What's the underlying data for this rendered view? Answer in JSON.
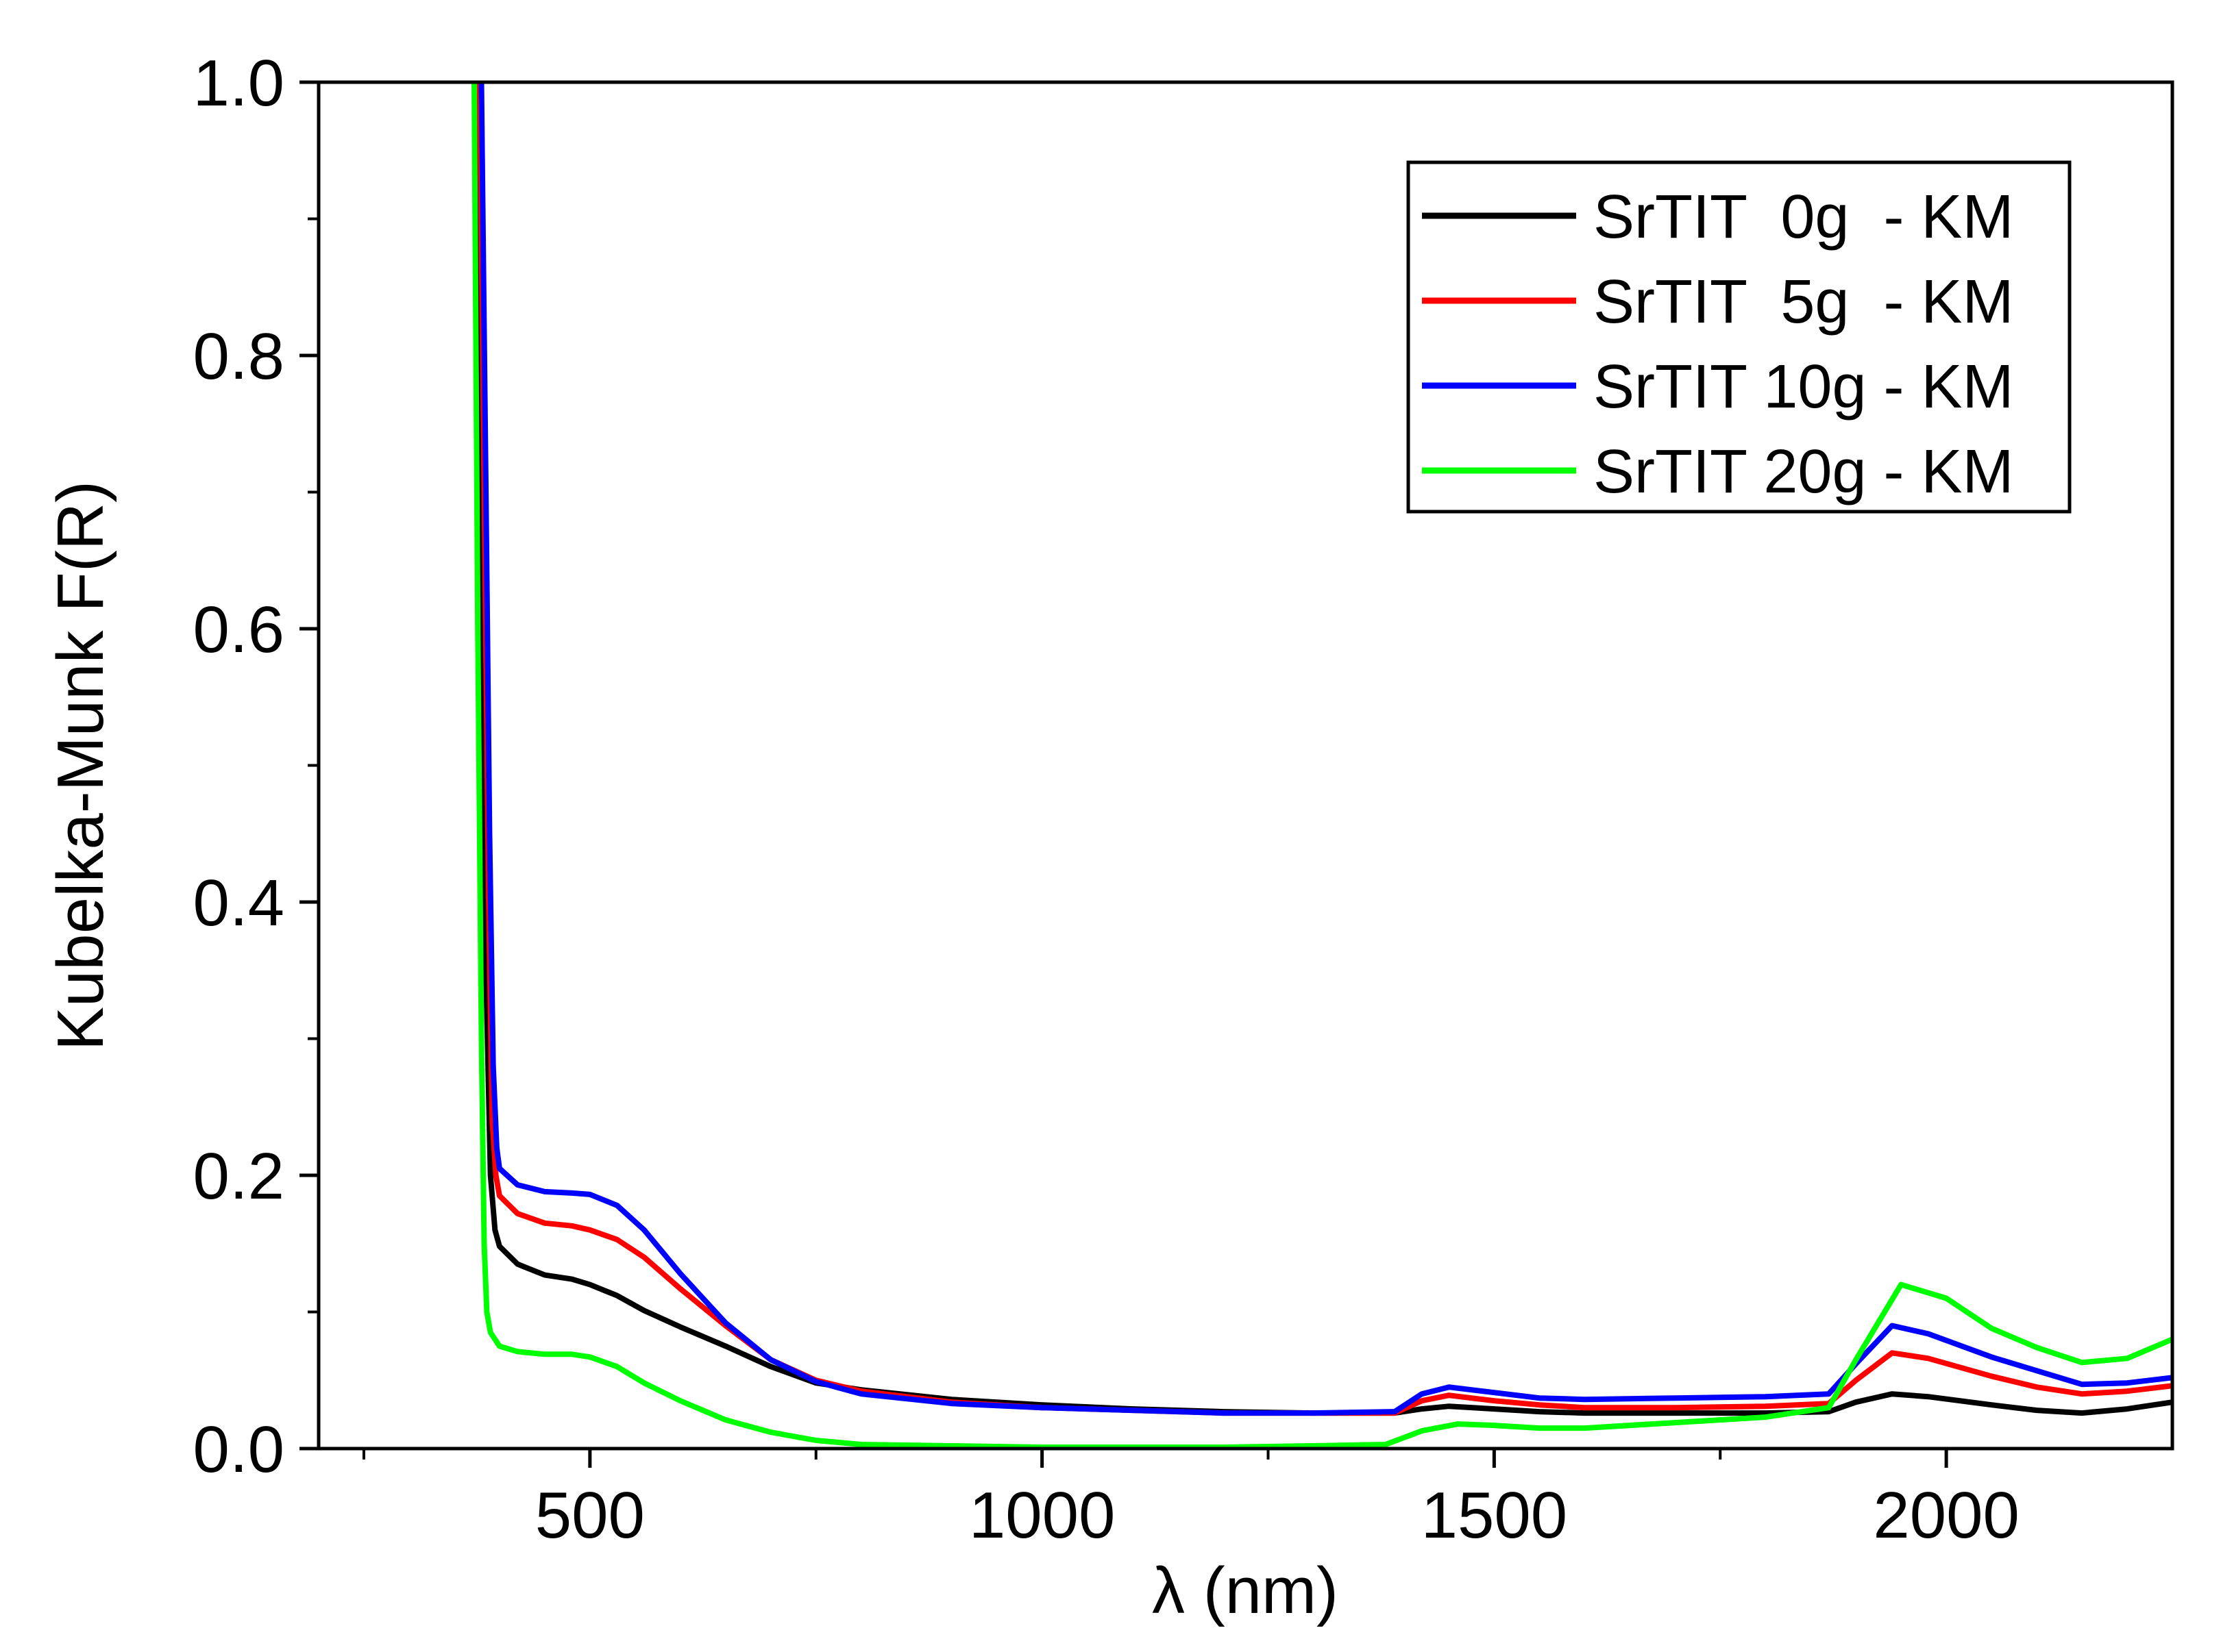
{
  "chart_data": {
    "type": "line",
    "title": "",
    "xlabel": "λ (nm)",
    "ylabel": "Kubelka-Munk F(R)",
    "xlim": [
      200,
      2250
    ],
    "ylim": [
      0.0,
      1.0
    ],
    "x_ticks": [
      500,
      1000,
      1500,
      2000
    ],
    "x_tick_labels": [
      "500",
      "1000",
      "1500",
      "2000"
    ],
    "x_minor_ticks": [
      250,
      750,
      1250,
      1750
    ],
    "y_ticks": [
      0.0,
      0.2,
      0.4,
      0.6,
      0.8,
      1.0
    ],
    "y_tick_labels": [
      "0.0",
      "0.2",
      "0.4",
      "0.6",
      "0.8",
      "1.0"
    ],
    "y_minor_ticks": [
      0.1,
      0.3,
      0.5,
      0.7,
      0.9
    ],
    "grid": false,
    "legend_position": "top-right",
    "series": [
      {
        "name": "SrTIT  0g  - KM",
        "color": "#000000",
        "points": [
          [
            375,
            1.0
          ],
          [
            380,
            0.7
          ],
          [
            385,
            0.35
          ],
          [
            390,
            0.2
          ],
          [
            395,
            0.16
          ],
          [
            400,
            0.148
          ],
          [
            420,
            0.135
          ],
          [
            450,
            0.127
          ],
          [
            480,
            0.124
          ],
          [
            500,
            0.12
          ],
          [
            530,
            0.112
          ],
          [
            560,
            0.101
          ],
          [
            600,
            0.089
          ],
          [
            650,
            0.075
          ],
          [
            700,
            0.06
          ],
          [
            750,
            0.048
          ],
          [
            800,
            0.043
          ],
          [
            900,
            0.036
          ],
          [
            1000,
            0.032
          ],
          [
            1100,
            0.029
          ],
          [
            1200,
            0.027
          ],
          [
            1300,
            0.026
          ],
          [
            1390,
            0.026
          ],
          [
            1420,
            0.029
          ],
          [
            1450,
            0.031
          ],
          [
            1500,
            0.029
          ],
          [
            1550,
            0.027
          ],
          [
            1600,
            0.026
          ],
          [
            1700,
            0.026
          ],
          [
            1800,
            0.026
          ],
          [
            1870,
            0.027
          ],
          [
            1900,
            0.034
          ],
          [
            1940,
            0.04
          ],
          [
            1980,
            0.038
          ],
          [
            2050,
            0.032
          ],
          [
            2100,
            0.028
          ],
          [
            2150,
            0.026
          ],
          [
            2200,
            0.029
          ],
          [
            2250,
            0.034
          ]
        ]
      },
      {
        "name": "SrTIT  5g  - KM",
        "color": "#ff0000",
        "points": [
          [
            378,
            1.0
          ],
          [
            383,
            0.7
          ],
          [
            388,
            0.4
          ],
          [
            392,
            0.24
          ],
          [
            396,
            0.2
          ],
          [
            400,
            0.185
          ],
          [
            420,
            0.172
          ],
          [
            450,
            0.165
          ],
          [
            480,
            0.163
          ],
          [
            500,
            0.16
          ],
          [
            530,
            0.153
          ],
          [
            560,
            0.14
          ],
          [
            600,
            0.117
          ],
          [
            650,
            0.09
          ],
          [
            700,
            0.065
          ],
          [
            750,
            0.05
          ],
          [
            800,
            0.042
          ],
          [
            900,
            0.034
          ],
          [
            1000,
            0.03
          ],
          [
            1100,
            0.028
          ],
          [
            1200,
            0.026
          ],
          [
            1300,
            0.026
          ],
          [
            1390,
            0.026
          ],
          [
            1420,
            0.035
          ],
          [
            1450,
            0.039
          ],
          [
            1500,
            0.035
          ],
          [
            1550,
            0.032
          ],
          [
            1600,
            0.03
          ],
          [
            1700,
            0.03
          ],
          [
            1800,
            0.031
          ],
          [
            1870,
            0.033
          ],
          [
            1900,
            0.05
          ],
          [
            1940,
            0.07
          ],
          [
            1980,
            0.066
          ],
          [
            2050,
            0.053
          ],
          [
            2100,
            0.045
          ],
          [
            2150,
            0.04
          ],
          [
            2200,
            0.042
          ],
          [
            2250,
            0.046
          ]
        ]
      },
      {
        "name": "SrTIT 10g - KM",
        "color": "#0000ff",
        "points": [
          [
            380,
            1.0
          ],
          [
            385,
            0.7
          ],
          [
            389,
            0.45
          ],
          [
            393,
            0.28
          ],
          [
            397,
            0.22
          ],
          [
            400,
            0.205
          ],
          [
            420,
            0.193
          ],
          [
            450,
            0.188
          ],
          [
            480,
            0.187
          ],
          [
            500,
            0.186
          ],
          [
            530,
            0.178
          ],
          [
            560,
            0.16
          ],
          [
            600,
            0.128
          ],
          [
            650,
            0.092
          ],
          [
            700,
            0.065
          ],
          [
            750,
            0.049
          ],
          [
            800,
            0.04
          ],
          [
            900,
            0.033
          ],
          [
            1000,
            0.03
          ],
          [
            1100,
            0.028
          ],
          [
            1200,
            0.026
          ],
          [
            1300,
            0.026
          ],
          [
            1390,
            0.027
          ],
          [
            1420,
            0.04
          ],
          [
            1450,
            0.045
          ],
          [
            1500,
            0.041
          ],
          [
            1550,
            0.037
          ],
          [
            1600,
            0.036
          ],
          [
            1700,
            0.037
          ],
          [
            1800,
            0.038
          ],
          [
            1870,
            0.04
          ],
          [
            1900,
            0.062
          ],
          [
            1940,
            0.09
          ],
          [
            1980,
            0.084
          ],
          [
            2050,
            0.067
          ],
          [
            2100,
            0.057
          ],
          [
            2150,
            0.047
          ],
          [
            2200,
            0.048
          ],
          [
            2250,
            0.052
          ]
        ]
      },
      {
        "name": "SrTIT 20g - KM",
        "color": "#00ff00",
        "points": [
          [
            372,
            1.0
          ],
          [
            376,
            0.6
          ],
          [
            380,
            0.3
          ],
          [
            383,
            0.15
          ],
          [
            386,
            0.1
          ],
          [
            390,
            0.085
          ],
          [
            400,
            0.075
          ],
          [
            420,
            0.071
          ],
          [
            450,
            0.069
          ],
          [
            480,
            0.069
          ],
          [
            500,
            0.067
          ],
          [
            530,
            0.06
          ],
          [
            560,
            0.048
          ],
          [
            600,
            0.035
          ],
          [
            650,
            0.021
          ],
          [
            700,
            0.012
          ],
          [
            750,
            0.006
          ],
          [
            800,
            0.003
          ],
          [
            900,
            0.002
          ],
          [
            1000,
            0.001
          ],
          [
            1100,
            0.001
          ],
          [
            1200,
            0.001
          ],
          [
            1300,
            0.002
          ],
          [
            1380,
            0.003
          ],
          [
            1420,
            0.013
          ],
          [
            1460,
            0.018
          ],
          [
            1500,
            0.017
          ],
          [
            1550,
            0.015
          ],
          [
            1600,
            0.015
          ],
          [
            1700,
            0.019
          ],
          [
            1800,
            0.023
          ],
          [
            1870,
            0.03
          ],
          [
            1900,
            0.065
          ],
          [
            1950,
            0.12
          ],
          [
            2000,
            0.11
          ],
          [
            2050,
            0.088
          ],
          [
            2100,
            0.074
          ],
          [
            2150,
            0.063
          ],
          [
            2200,
            0.066
          ],
          [
            2250,
            0.08
          ]
        ]
      }
    ]
  }
}
